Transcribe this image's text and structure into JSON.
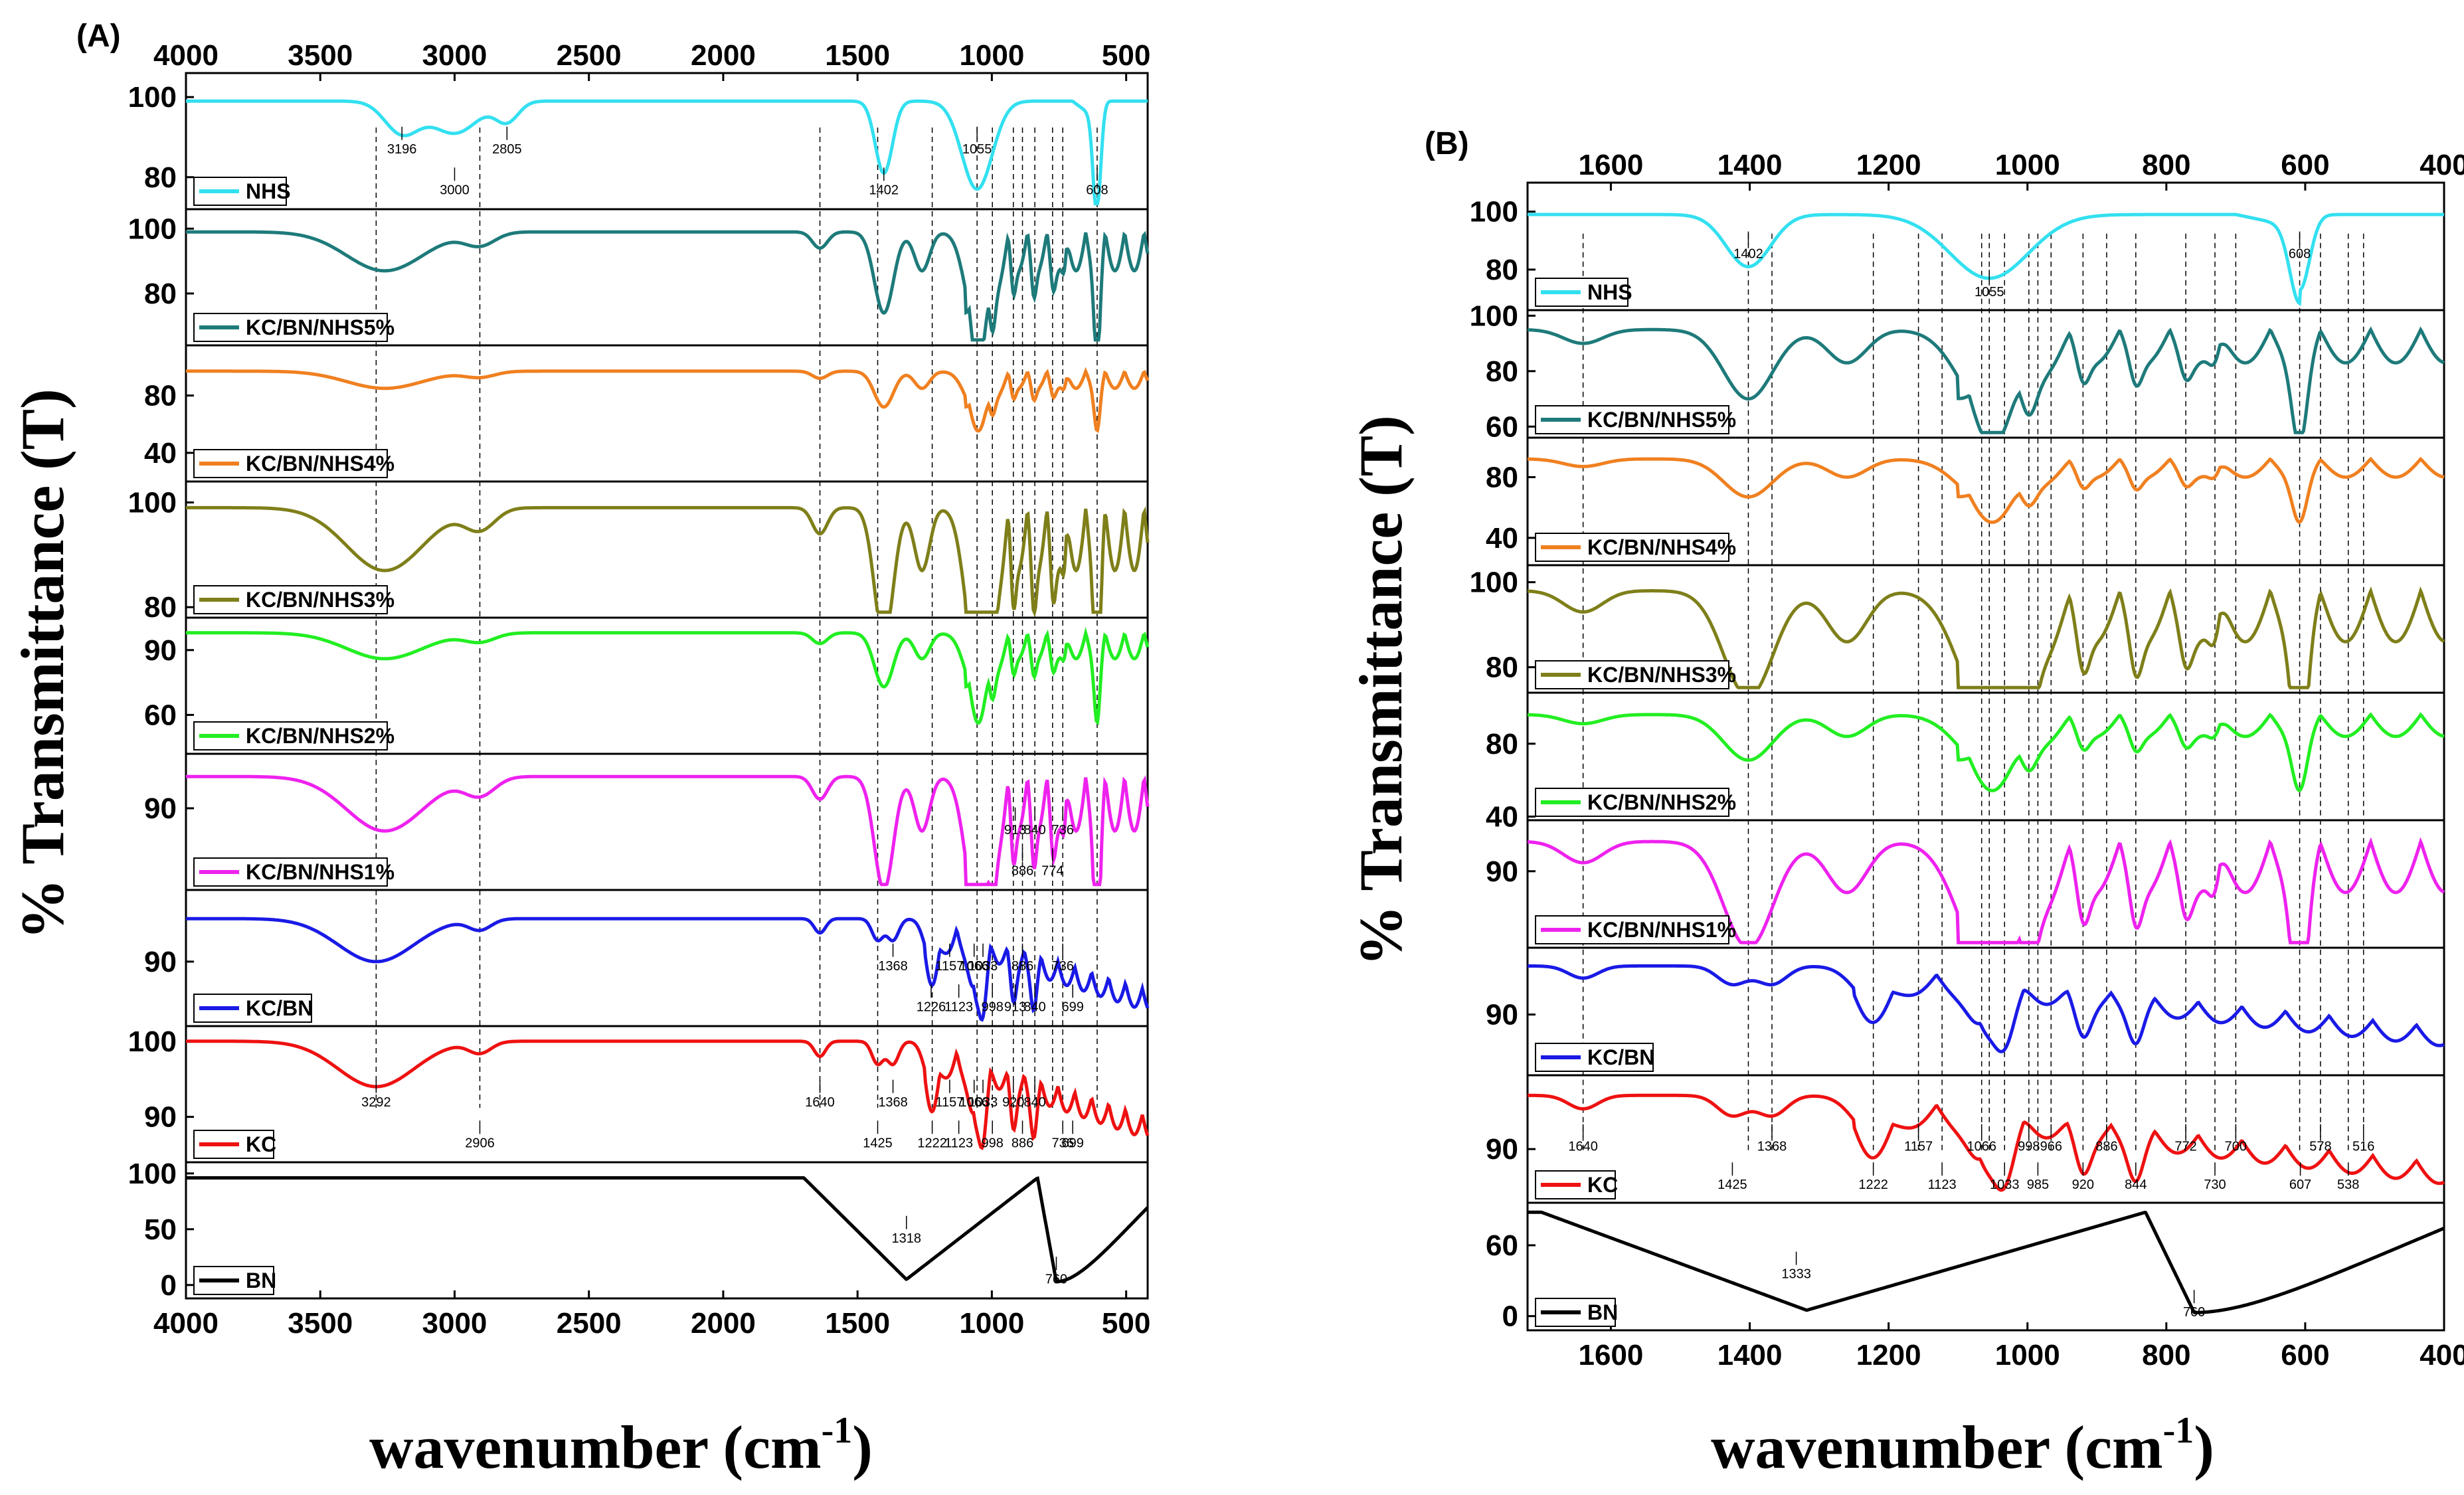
{
  "chart_data": [
    {
      "panel": "(A)",
      "type": "line",
      "xlabel": "wavenumber (cm-1)",
      "ylabel": "% Transmittance (T)",
      "xlim": [
        4000,
        420
      ],
      "xticks": [
        4000,
        3500,
        3000,
        2500,
        2000,
        1500,
        1000,
        500
      ],
      "series": [
        {
          "name": "NHS",
          "color": "#33e0f0",
          "ylim": [
            72,
            106
          ],
          "yticks": [
            80,
            100
          ],
          "base": 99,
          "shape": "nhs",
          "annotations": [
            "3196",
            "3000",
            "2805",
            "1402",
            "1055",
            "608"
          ]
        },
        {
          "name": "KC/BN/NHS5%",
          "color": "#1e7a7a",
          "ylim": [
            64,
            106
          ],
          "yticks": [
            80,
            100
          ],
          "base": 99,
          "shape": "mix",
          "annotations": []
        },
        {
          "name": "KC/BN/NHS4%",
          "color": "#f08020",
          "ylim": [
            20,
            115
          ],
          "yticks": [
            40,
            80
          ],
          "base": 97,
          "shape": "mix",
          "annotations": []
        },
        {
          "name": "KC/BN/NHS3%",
          "color": "#7f7f1a",
          "ylim": [
            78,
            104
          ],
          "yticks": [
            80,
            100
          ],
          "base": 99,
          "shape": "mix",
          "annotations": []
        },
        {
          "name": "KC/BN/NHS2%",
          "color": "#22ee22",
          "ylim": [
            42,
            105
          ],
          "yticks": [
            60,
            90
          ],
          "base": 98,
          "shape": "mix",
          "annotations": []
        },
        {
          "name": "KC/BN/NHS1%",
          "color": "#ee22ee",
          "ylim": [
            72,
            102
          ],
          "yticks": [
            90
          ],
          "base": 97,
          "shape": "mix",
          "annotations": [
            "913",
            "886",
            "840",
            "774",
            "736"
          ]
        },
        {
          "name": "KC/BN",
          "color": "#1a1ae6",
          "ylim": [
            81,
            100
          ],
          "yticks": [
            90
          ],
          "base": 96,
          "shape": "kc",
          "annotations": [
            "1368",
            "1226",
            "1157",
            "1123",
            "1066",
            "998",
            "1033",
            "913",
            "886",
            "840",
            "736",
            "699"
          ]
        },
        {
          "name": "KC",
          "color": "#ee1111",
          "ylim": [
            84,
            102
          ],
          "yticks": [
            90,
            100
          ],
          "base": 100,
          "shape": "kc",
          "annotations": [
            "3292",
            "2906",
            "1640",
            "1425",
            "1368",
            "1222",
            "1157",
            "1123",
            "1066",
            "998",
            "1033",
            "886",
            "840",
            "736",
            "920",
            "699"
          ]
        },
        {
          "name": "BN",
          "color": "#000000",
          "ylim": [
            -12,
            110
          ],
          "yticks": [
            0,
            50,
            100
          ],
          "base": 96,
          "shape": "bn",
          "annotations": [
            "1318",
            "760"
          ]
        }
      ],
      "guide_lines": [
        3292,
        2906,
        1640,
        1425,
        1222,
        1055,
        998,
        920,
        886,
        840,
        774,
        736,
        608
      ]
    },
    {
      "panel": "(B)",
      "type": "line",
      "xlabel": "wavenumber (cm-1)",
      "ylabel": "% Transmittance (T)",
      "xlim": [
        1720,
        400
      ],
      "xticks": [
        1600,
        1400,
        1200,
        1000,
        800,
        600,
        400
      ],
      "series": [
        {
          "name": "NHS",
          "color": "#33e0f0",
          "ylim": [
            66,
            110
          ],
          "yticks": [
            80,
            100
          ],
          "base": 99,
          "shape": "nhs",
          "annotations": [
            "1402",
            "1055",
            "608"
          ]
        },
        {
          "name": "KC/BN/NHS5%",
          "color": "#1e7a7a",
          "ylim": [
            56,
            102
          ],
          "yticks": [
            60,
            80,
            100
          ],
          "base": 95,
          "shape": "mix",
          "annotations": []
        },
        {
          "name": "KC/BN/NHS4%",
          "color": "#f08020",
          "ylim": [
            22,
            106
          ],
          "yticks": [
            40,
            80
          ],
          "base": 92,
          "shape": "mix",
          "annotations": []
        },
        {
          "name": "KC/BN/NHS3%",
          "color": "#7f7f1a",
          "ylim": [
            74,
            104
          ],
          "yticks": [
            80,
            100
          ],
          "base": 98,
          "shape": "mix",
          "annotations": []
        },
        {
          "name": "KC/BN/NHS2%",
          "color": "#22ee22",
          "ylim": [
            38,
            108
          ],
          "yticks": [
            40,
            80
          ],
          "base": 96,
          "shape": "mix",
          "annotations": []
        },
        {
          "name": "KC/BN/NHS1%",
          "color": "#ee22ee",
          "ylim": [
            72,
            102
          ],
          "yticks": [
            90
          ],
          "base": 97,
          "shape": "mix",
          "annotations": []
        },
        {
          "name": "KC/BN",
          "color": "#1a1ae6",
          "ylim": [
            80,
            101
          ],
          "yticks": [
            90
          ],
          "base": 98,
          "shape": "kc",
          "annotations": []
        },
        {
          "name": "KC",
          "color": "#ee1111",
          "ylim": [
            82,
            101
          ],
          "yticks": [
            90
          ],
          "base": 98,
          "shape": "kc",
          "annotations": [
            "1640",
            "1425",
            "1368",
            "1222",
            "1157",
            "1123",
            "1066",
            "1033",
            "998",
            "985",
            "966",
            "920",
            "886",
            "844",
            "772",
            "730",
            "700",
            "607",
            "578",
            "538",
            "516"
          ]
        },
        {
          "name": "BN",
          "color": "#000000",
          "ylim": [
            -12,
            96
          ],
          "yticks": [
            0,
            60
          ],
          "base": 88,
          "shape": "bn",
          "annotations": [
            "1333",
            "760"
          ]
        }
      ],
      "guide_lines": [
        1640,
        1402,
        1368,
        1222,
        1157,
        1123,
        1066,
        1055,
        1033,
        998,
        985,
        966,
        920,
        886,
        844,
        772,
        730,
        700,
        608,
        578,
        538,
        516
      ]
    }
  ],
  "labels": {
    "ylabel": "% Transmittance (T)",
    "xlabel_main": "wavenumber (cm",
    "xlabel_sup": "-1",
    "xlabel_end": ")"
  }
}
